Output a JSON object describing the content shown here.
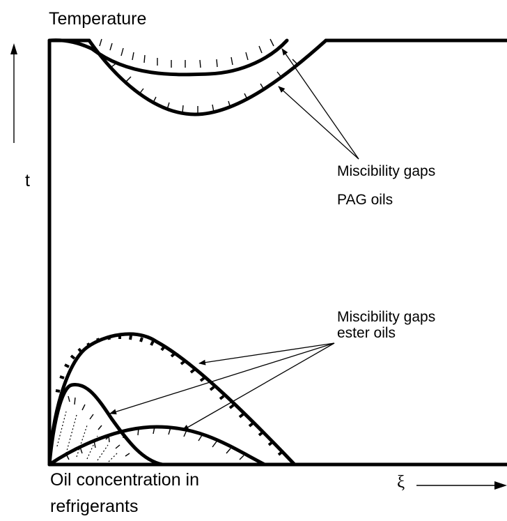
{
  "labels": {
    "y_title": "Temperature",
    "y_symbol": "t",
    "x_title_line1": "Oil concentration in",
    "x_title_line2": "refrigerants",
    "x_symbol": "ξ",
    "pag_line1": "Miscibility gaps",
    "pag_line2": "PAG oils",
    "ester_line1": "Miscibility gaps",
    "ester_line2": "ester oils"
  }
}
